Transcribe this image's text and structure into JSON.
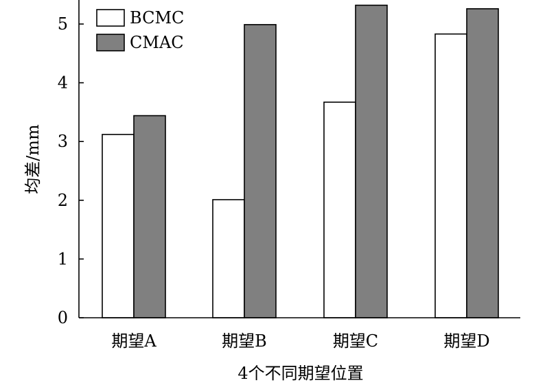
{
  "chart_data": {
    "type": "bar",
    "title": "",
    "xlabel": "4个不同期望位置",
    "ylabel": "均差/mm",
    "categories": [
      "期望A",
      "期望B",
      "期望C",
      "期望D"
    ],
    "series": [
      {
        "name": "BCMC",
        "values": [
          3.12,
          2.01,
          3.67,
          4.83
        ],
        "color": "#ffffff"
      },
      {
        "name": "CMAC",
        "values": [
          3.44,
          4.99,
          5.32,
          5.26
        ],
        "color": "#808080"
      }
    ],
    "ylim": [
      0,
      5.4
    ],
    "yticks": [
      "0",
      "1",
      "2",
      "3",
      "4",
      "5"
    ],
    "grid": false,
    "legend": "top-left"
  }
}
